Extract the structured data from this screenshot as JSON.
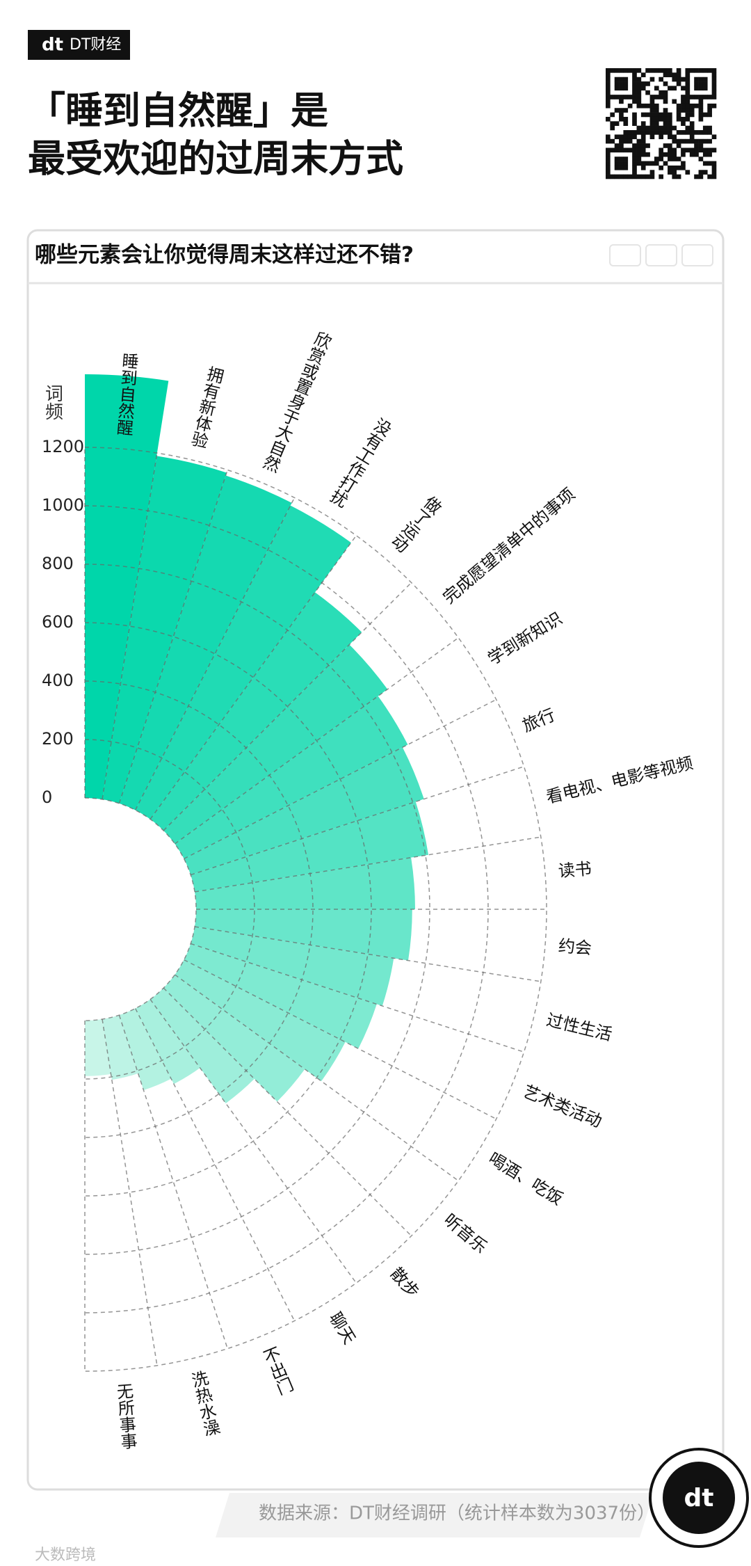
{
  "header": {
    "brand": "DT财经",
    "title_lines": [
      "「睡到自然醒」是",
      "最受欢迎的过周末方式"
    ]
  },
  "chart_data": {
    "type": "polar_bar",
    "title": "哪些元素会让你觉得周末这样过还不错?",
    "y_label": "词频",
    "categories": [
      "睡到自然醒",
      "拥有新体验",
      "欣赏或置身于大自然",
      "没有工作打扰",
      "做了运动",
      "完成愿望清单中的事项",
      "学到新知识",
      "旅行",
      "看电视、电影等视频",
      "读书",
      "约会",
      "过性生活",
      "艺术类活动",
      "喝酒、吃饭",
      "听音乐",
      "散步",
      "聊天",
      "不出门",
      "洗热水澡",
      "无所事事"
    ],
    "values": [
      1450,
      1190,
      1180,
      1170,
      960,
      900,
      860,
      840,
      810,
      750,
      740,
      690,
      670,
      620,
      550,
      440,
      290,
      270,
      210,
      190
    ],
    "colors": [
      "#00d6aa",
      "#0bd8ad",
      "#15d9b1",
      "#20dbb4",
      "#2addb7",
      "#35deba",
      "#3fe0be",
      "#4ae1c1",
      "#54e3c4",
      "#5fe5c7",
      "#69e6cb",
      "#74e8ce",
      "#7eead1",
      "#89ebd4",
      "#93edd8",
      "#9eeedb",
      "#a8f0de",
      "#b3f2e1",
      "#bdf3e5",
      "#c8f5e8"
    ],
    "ylim": [
      0,
      1200
    ],
    "yticks": [
      0,
      200,
      400,
      600,
      800,
      1000,
      1200
    ],
    "grid": true
  },
  "footer": {
    "source": "数据来源：DT财经调研（统计样本数为3037份）",
    "watermark": "大数跨境"
  }
}
